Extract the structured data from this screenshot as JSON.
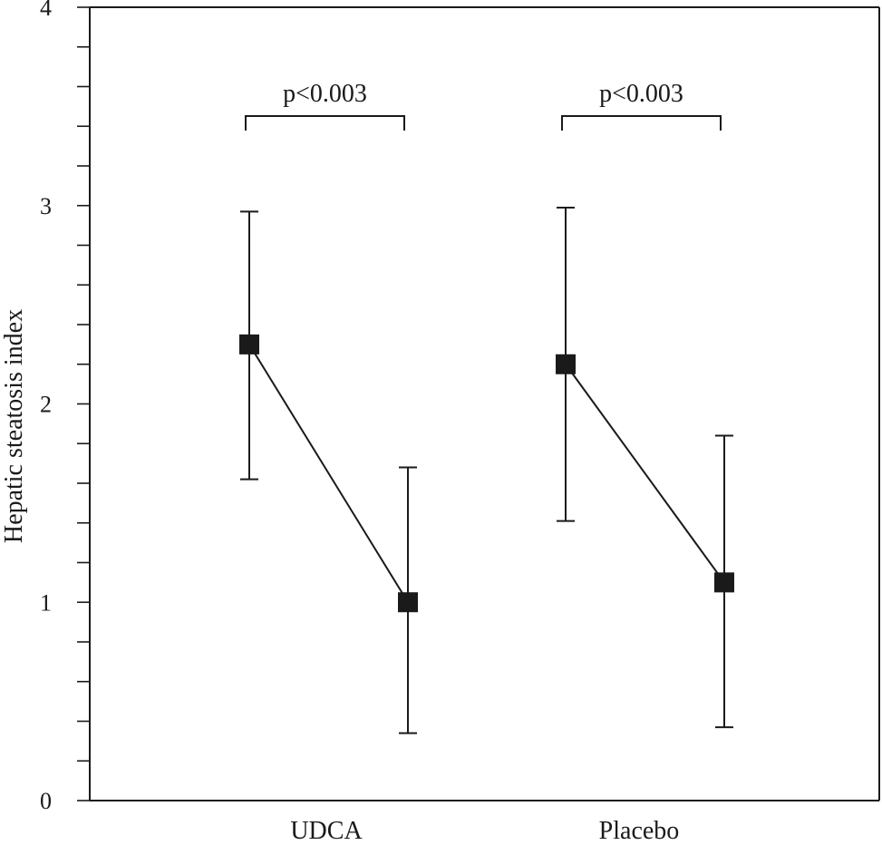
{
  "chart_data": {
    "type": "scatter",
    "ylabel": "Hepatic steatosis index",
    "ylim": [
      0,
      4
    ],
    "y_major_ticks": [
      0,
      1,
      2,
      3,
      4
    ],
    "y_minor_step": 0.2,
    "grid": false,
    "groups": [
      {
        "label": "UDCA",
        "points": [
          {
            "mean": 2.3,
            "low": 1.62,
            "high": 2.97
          },
          {
            "mean": 1.0,
            "low": 0.34,
            "high": 1.68
          }
        ],
        "significance": "p<0.003"
      },
      {
        "label": "Placebo",
        "points": [
          {
            "mean": 2.2,
            "low": 1.41,
            "high": 2.99
          },
          {
            "mean": 1.1,
            "low": 0.37,
            "high": 1.84
          }
        ],
        "significance": "p<0.003"
      }
    ],
    "colors": {
      "ink": "#1a1a1a",
      "background": "#ffffff"
    }
  }
}
